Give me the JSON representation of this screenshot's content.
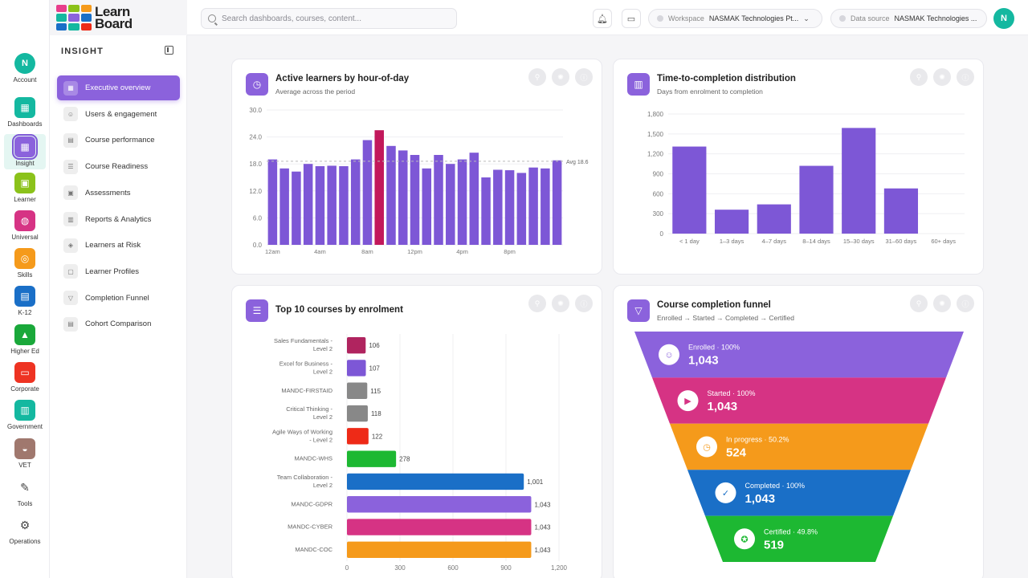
{
  "app": {
    "logo_line1": "Learn",
    "logo_line2": "Board"
  },
  "rail": [
    {
      "label": "Account",
      "icon": "account-avatar-icon",
      "glyph": "N",
      "color": "#14b8a0"
    },
    {
      "label": "Dashboards",
      "icon": "dashboards-icon",
      "glyph": "▦",
      "color": "#14b8a0"
    },
    {
      "label": "Insight",
      "icon": "insight-icon",
      "glyph": "▦",
      "color": "#8b62dc",
      "active": true
    },
    {
      "label": "Learner",
      "icon": "learner-icon",
      "glyph": "▣",
      "color": "#8bc21a"
    },
    {
      "label": "Universal",
      "icon": "globe-icon",
      "glyph": "◍",
      "color": "#d63384"
    },
    {
      "label": "Skills",
      "icon": "target-icon",
      "glyph": "◎",
      "color": "#f59a1b"
    },
    {
      "label": "K-12",
      "icon": "school-icon",
      "glyph": "▤",
      "color": "#1a6fc7"
    },
    {
      "label": "Higher Ed",
      "icon": "graduation-cap-icon",
      "glyph": "▲",
      "color": "#1aa83a"
    },
    {
      "label": "Corporate",
      "icon": "briefcase-icon",
      "glyph": "▭",
      "color": "#ee3322"
    },
    {
      "label": "Government",
      "icon": "government-building-icon",
      "glyph": "▥",
      "color": "#14b8a0"
    },
    {
      "label": "VET",
      "icon": "hard-hat-icon",
      "glyph": "◒",
      "color": "#a0786e"
    },
    {
      "label": "Tools",
      "icon": "wrench-icon",
      "glyph": "✎",
      "color": "none"
    },
    {
      "label": "Operations",
      "icon": "gear-icon",
      "glyph": "⚙",
      "color": "none"
    }
  ],
  "sidebar": {
    "title": "INSIGHT",
    "items": [
      {
        "label": "Executive overview",
        "active": true
      },
      {
        "label": "Users & engagement"
      },
      {
        "label": "Course performance"
      },
      {
        "label": "Course Readiness"
      },
      {
        "label": "Assessments"
      },
      {
        "label": "Reports & Analytics"
      },
      {
        "label": "Learners at Risk"
      },
      {
        "label": "Learner Profiles"
      },
      {
        "label": "Completion Funnel"
      },
      {
        "label": "Cohort Comparison"
      }
    ]
  },
  "topbar": {
    "search_placeholder": "Search dashboards, courses, content...",
    "workspace_label": "Workspace",
    "workspace_value": "NASMAK Technologies Pt...",
    "datasource_label": "Data source",
    "datasource_value": "NASMAK Technologies ...",
    "user_initial": "N"
  },
  "cards": {
    "hourly": {
      "title": "Active learners by hour-of-day",
      "subtitle": "Average across the period"
    },
    "ttc": {
      "title": "Time-to-completion distribution",
      "subtitle": "Days from enrolment to completion"
    },
    "top10": {
      "title": "Top 10 courses by enrolment"
    },
    "funnel": {
      "title": "Course completion funnel",
      "subtitle": "Enrolled → Started → Completed → Certified"
    }
  },
  "chart_data": [
    {
      "type": "bar",
      "title": "Active learners by hour-of-day",
      "ylim": [
        0,
        30
      ],
      "yticks": [
        "0.0",
        "6.0",
        "12.0",
        "18.0",
        "24.0",
        "30.0"
      ],
      "xtick_labels": [
        "12am",
        "4am",
        "8am",
        "12pm",
        "4pm",
        "8pm"
      ],
      "values": [
        19,
        17,
        16.3,
        18,
        17.5,
        17.6,
        17.5,
        19,
        23.3,
        25.5,
        22,
        21,
        20,
        17,
        20,
        18,
        19,
        20.5,
        15,
        16.7,
        16.6,
        16,
        17.2,
        17,
        18.8
      ],
      "highlight_index": 9,
      "color": "#7d57d6",
      "highlight_color": "#c2185b",
      "reference_line": {
        "value": 18.6,
        "label": "Avg 18.6"
      }
    },
    {
      "type": "bar",
      "title": "Time-to-completion distribution",
      "ylim": [
        0,
        1800
      ],
      "yticks": [
        "0",
        "300",
        "600",
        "900",
        "1,200",
        "1,500",
        "1,800"
      ],
      "categories": [
        "< 1 day",
        "1–3 days",
        "4–7 days",
        "8–14 days",
        "15–30 days",
        "31–60 days",
        "60+ days"
      ],
      "values": [
        1310,
        360,
        440,
        1020,
        1590,
        680,
        0
      ],
      "color": "#7d57d6"
    },
    {
      "type": "bar",
      "orientation": "horizontal",
      "title": "Top 10 courses by enrolment",
      "xlim": [
        0,
        1200
      ],
      "xticks": [
        "0",
        "300",
        "600",
        "900",
        "1,200"
      ],
      "categories": [
        [
          "Sales Fundamentals -",
          "Level 2"
        ],
        [
          "Excel for Business -",
          "Level 2"
        ],
        [
          "MANDC-FIRSTAID"
        ],
        [
          "Critical Thinking -",
          "Level 2"
        ],
        [
          "Agile Ways of Working",
          "- Level 2"
        ],
        [
          "MANDC-WHS"
        ],
        [
          "Team Collaboration -",
          "Level 2"
        ],
        [
          "MANDC-GDPR"
        ],
        [
          "MANDC-CYBER"
        ],
        [
          "MANDC-COC"
        ]
      ],
      "values": [
        106,
        107,
        115,
        118,
        122,
        278,
        1001,
        1043,
        1043,
        1043
      ],
      "value_labels": [
        "106",
        "107",
        "115",
        "118",
        "122",
        "278",
        "1,001",
        "1,043",
        "1,043",
        "1,043"
      ],
      "colors": [
        "#b0245f",
        "#7d57d6",
        "#888888",
        "#888888",
        "#ee2a17",
        "#1db832",
        "#1a6fc7",
        "#8b62dc",
        "#d63384",
        "#f59a1b"
      ]
    },
    {
      "type": "funnel",
      "title": "Course completion funnel",
      "stages": [
        {
          "label": "Enrolled",
          "pct": "100%",
          "value": "1,043",
          "icon": "users-icon",
          "color": "#8b62dc"
        },
        {
          "label": "Started",
          "pct": "100%",
          "value": "1,043",
          "icon": "play-icon",
          "color": "#d63384"
        },
        {
          "label": "In progress",
          "pct": "50.2%",
          "value": "524",
          "icon": "clock-icon",
          "color": "#f59a1b"
        },
        {
          "label": "Completed",
          "pct": "100%",
          "value": "1,043",
          "icon": "check-circle-icon",
          "color": "#1a6fc7"
        },
        {
          "label": "Certified",
          "pct": "49.8%",
          "value": "519",
          "icon": "award-icon",
          "color": "#1db832"
        }
      ]
    }
  ]
}
